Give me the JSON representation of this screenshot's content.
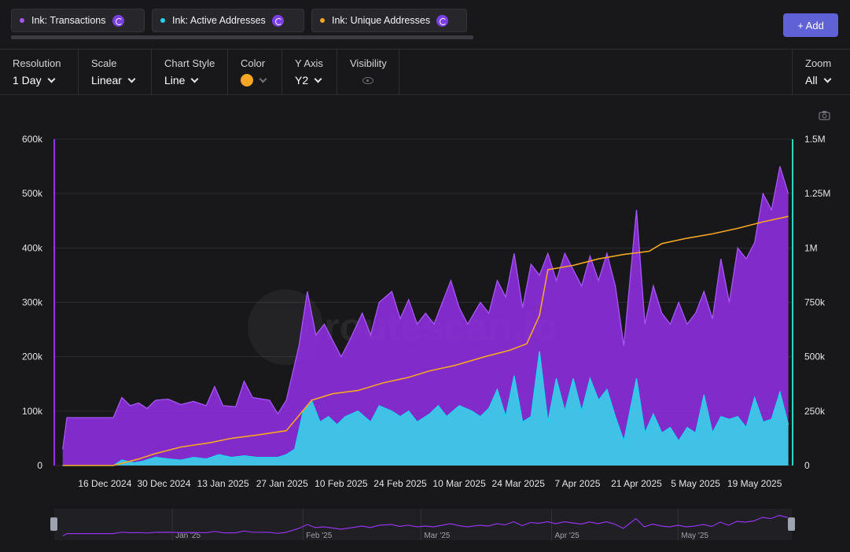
{
  "series_chips": [
    {
      "label": "Ink: Transactions",
      "color": "#a855f7"
    },
    {
      "label": "Ink: Active Addresses",
      "color": "#22d3ee"
    },
    {
      "label": "Ink: Unique Addresses",
      "color": "#f5a623"
    }
  ],
  "add_button": "+ Add",
  "controls": {
    "resolution": {
      "label": "Resolution",
      "value": "1 Day"
    },
    "scale": {
      "label": "Scale",
      "value": "Linear"
    },
    "chart_style": {
      "label": "Chart Style",
      "value": "Line"
    },
    "color": {
      "label": "Color",
      "value": "#f5a623"
    },
    "y_axis": {
      "label": "Y Axis",
      "value": "Y2"
    },
    "visibility": {
      "label": "Visibility"
    },
    "zoom": {
      "label": "Zoom",
      "value": "All"
    }
  },
  "icons": {
    "screenshot": "camera-icon",
    "visibility": "eye-icon",
    "series": "ink-logo-icon"
  },
  "watermark": "routescan.io",
  "chart_data": {
    "type": "area",
    "grid": true,
    "x_ticks": [
      "16 Dec 2024",
      "30 Dec 2024",
      "13 Jan 2025",
      "27 Jan 2025",
      "10 Feb 2025",
      "24 Feb 2025",
      "10 Mar 2025",
      "24 Mar 2025",
      "7 Apr 2025",
      "21 Apr 2025",
      "5 May 2025",
      "19 May 2025"
    ],
    "x_range": [
      "2024-12-04",
      "2025-05-28"
    ],
    "y_left": {
      "ticks": [
        "0",
        "100k",
        "200k",
        "300k",
        "400k",
        "500k",
        "600k"
      ],
      "range": [
        0,
        600000
      ]
    },
    "y_right": {
      "ticks": [
        "0",
        "250k",
        "500k",
        "750k",
        "1M",
        "1.25M",
        "1.5M"
      ],
      "range": [
        0,
        1500000
      ]
    },
    "navigator_ticks": [
      "Jan '25",
      "Feb '25",
      "Mar '25",
      "Apr '25",
      "May '25"
    ],
    "series": [
      {
        "name": "Ink: Transactions",
        "axis": "left",
        "color": "#8b2fd9",
        "line": "#a855f7",
        "points": [
          [
            "2024-12-06",
            30000
          ],
          [
            "2024-12-07",
            88000
          ],
          [
            "2024-12-16",
            88000
          ],
          [
            "2024-12-18",
            88000
          ],
          [
            "2024-12-20",
            125000
          ],
          [
            "2024-12-22",
            110000
          ],
          [
            "2024-12-24",
            115000
          ],
          [
            "2024-12-26",
            105000
          ],
          [
            "2024-12-28",
            120000
          ],
          [
            "2024-12-31",
            122000
          ],
          [
            "2025-01-03",
            112000
          ],
          [
            "2025-01-06",
            118000
          ],
          [
            "2025-01-09",
            110000
          ],
          [
            "2025-01-11",
            145000
          ],
          [
            "2025-01-13",
            110000
          ],
          [
            "2025-01-16",
            108000
          ],
          [
            "2025-01-18",
            155000
          ],
          [
            "2025-01-20",
            125000
          ],
          [
            "2025-01-24",
            120000
          ],
          [
            "2025-01-26",
            95000
          ],
          [
            "2025-01-28",
            120000
          ],
          [
            "2025-01-31",
            220000
          ],
          [
            "2025-02-02",
            320000
          ],
          [
            "2025-02-04",
            240000
          ],
          [
            "2025-02-06",
            260000
          ],
          [
            "2025-02-08",
            230000
          ],
          [
            "2025-02-10",
            200000
          ],
          [
            "2025-02-12",
            230000
          ],
          [
            "2025-02-15",
            280000
          ],
          [
            "2025-02-17",
            240000
          ],
          [
            "2025-02-19",
            300000
          ],
          [
            "2025-02-22",
            320000
          ],
          [
            "2025-02-24",
            270000
          ],
          [
            "2025-02-26",
            305000
          ],
          [
            "2025-02-28",
            260000
          ],
          [
            "2025-03-02",
            280000
          ],
          [
            "2025-03-04",
            260000
          ],
          [
            "2025-03-06",
            300000
          ],
          [
            "2025-03-08",
            340000
          ],
          [
            "2025-03-10",
            290000
          ],
          [
            "2025-03-12",
            260000
          ],
          [
            "2025-03-15",
            300000
          ],
          [
            "2025-03-17",
            280000
          ],
          [
            "2025-03-19",
            340000
          ],
          [
            "2025-03-21",
            310000
          ],
          [
            "2025-03-23",
            390000
          ],
          [
            "2025-03-25",
            290000
          ],
          [
            "2025-03-27",
            370000
          ],
          [
            "2025-03-29",
            350000
          ],
          [
            "2025-03-31",
            390000
          ],
          [
            "2025-04-02",
            340000
          ],
          [
            "2025-04-04",
            390000
          ],
          [
            "2025-04-06",
            360000
          ],
          [
            "2025-04-08",
            330000
          ],
          [
            "2025-04-10",
            385000
          ],
          [
            "2025-04-12",
            340000
          ],
          [
            "2025-04-14",
            390000
          ],
          [
            "2025-04-16",
            330000
          ],
          [
            "2025-04-18",
            220000
          ],
          [
            "2025-04-21",
            470000
          ],
          [
            "2025-04-23",
            260000
          ],
          [
            "2025-04-25",
            330000
          ],
          [
            "2025-04-27",
            280000
          ],
          [
            "2025-04-29",
            260000
          ],
          [
            "2025-05-01",
            300000
          ],
          [
            "2025-05-03",
            260000
          ],
          [
            "2025-05-05",
            280000
          ],
          [
            "2025-05-07",
            320000
          ],
          [
            "2025-05-09",
            270000
          ],
          [
            "2025-05-11",
            380000
          ],
          [
            "2025-05-13",
            300000
          ],
          [
            "2025-05-15",
            400000
          ],
          [
            "2025-05-17",
            380000
          ],
          [
            "2025-05-19",
            410000
          ],
          [
            "2025-05-21",
            500000
          ],
          [
            "2025-05-23",
            470000
          ],
          [
            "2025-05-25",
            550000
          ],
          [
            "2025-05-27",
            500000
          ]
        ]
      },
      {
        "name": "Ink: Active Addresses",
        "axis": "left",
        "color": "#3cc9e6",
        "line": "#22d3ee",
        "points": [
          [
            "2024-12-06",
            0
          ],
          [
            "2024-12-18",
            0
          ],
          [
            "2024-12-20",
            10000
          ],
          [
            "2024-12-23",
            5000
          ],
          [
            "2024-12-25",
            8000
          ],
          [
            "2024-12-28",
            15000
          ],
          [
            "2024-12-31",
            12000
          ],
          [
            "2025-01-03",
            10000
          ],
          [
            "2025-01-06",
            15000
          ],
          [
            "2025-01-09",
            12000
          ],
          [
            "2025-01-12",
            20000
          ],
          [
            "2025-01-15",
            15000
          ],
          [
            "2025-01-18",
            18000
          ],
          [
            "2025-01-21",
            15000
          ],
          [
            "2025-01-26",
            15000
          ],
          [
            "2025-01-28",
            20000
          ],
          [
            "2025-01-30",
            30000
          ],
          [
            "2025-02-01",
            100000
          ],
          [
            "2025-02-03",
            120000
          ],
          [
            "2025-02-05",
            80000
          ],
          [
            "2025-02-07",
            90000
          ],
          [
            "2025-02-09",
            75000
          ],
          [
            "2025-02-11",
            90000
          ],
          [
            "2025-02-14",
            100000
          ],
          [
            "2025-02-17",
            80000
          ],
          [
            "2025-02-19",
            110000
          ],
          [
            "2025-02-22",
            100000
          ],
          [
            "2025-02-24",
            90000
          ],
          [
            "2025-02-26",
            100000
          ],
          [
            "2025-02-28",
            80000
          ],
          [
            "2025-03-03",
            95000
          ],
          [
            "2025-03-05",
            110000
          ],
          [
            "2025-03-07",
            90000
          ],
          [
            "2025-03-10",
            110000
          ],
          [
            "2025-03-13",
            100000
          ],
          [
            "2025-03-15",
            90000
          ],
          [
            "2025-03-17",
            105000
          ],
          [
            "2025-03-19",
            140000
          ],
          [
            "2025-03-21",
            90000
          ],
          [
            "2025-03-23",
            165000
          ],
          [
            "2025-03-25",
            80000
          ],
          [
            "2025-03-27",
            90000
          ],
          [
            "2025-03-29",
            210000
          ],
          [
            "2025-03-31",
            80000
          ],
          [
            "2025-04-02",
            160000
          ],
          [
            "2025-04-04",
            100000
          ],
          [
            "2025-04-06",
            160000
          ],
          [
            "2025-04-08",
            100000
          ],
          [
            "2025-04-10",
            160000
          ],
          [
            "2025-04-12",
            120000
          ],
          [
            "2025-04-14",
            140000
          ],
          [
            "2025-04-16",
            90000
          ],
          [
            "2025-04-18",
            45000
          ],
          [
            "2025-04-21",
            160000
          ],
          [
            "2025-04-23",
            60000
          ],
          [
            "2025-04-25",
            95000
          ],
          [
            "2025-04-27",
            60000
          ],
          [
            "2025-04-29",
            70000
          ],
          [
            "2025-05-01",
            45000
          ],
          [
            "2025-05-03",
            70000
          ],
          [
            "2025-05-05",
            60000
          ],
          [
            "2025-05-07",
            130000
          ],
          [
            "2025-05-09",
            60000
          ],
          [
            "2025-05-11",
            90000
          ],
          [
            "2025-05-13",
            85000
          ],
          [
            "2025-05-15",
            90000
          ],
          [
            "2025-05-17",
            70000
          ],
          [
            "2025-05-19",
            125000
          ],
          [
            "2025-05-21",
            80000
          ],
          [
            "2025-05-23",
            85000
          ],
          [
            "2025-05-25",
            135000
          ],
          [
            "2025-05-27",
            75000
          ]
        ]
      },
      {
        "name": "Ink: Unique Addresses",
        "axis": "right",
        "color": "#f5a623",
        "points": [
          [
            "2024-12-06",
            0
          ],
          [
            "2024-12-18",
            0
          ],
          [
            "2024-12-20",
            10000
          ],
          [
            "2024-12-24",
            30000
          ],
          [
            "2024-12-28",
            55000
          ],
          [
            "2025-01-03",
            85000
          ],
          [
            "2025-01-10",
            105000
          ],
          [
            "2025-01-15",
            125000
          ],
          [
            "2025-01-21",
            140000
          ],
          [
            "2025-01-28",
            160000
          ],
          [
            "2025-01-31",
            230000
          ],
          [
            "2025-02-03",
            300000
          ],
          [
            "2025-02-08",
            330000
          ],
          [
            "2025-02-14",
            345000
          ],
          [
            "2025-02-20",
            380000
          ],
          [
            "2025-02-26",
            405000
          ],
          [
            "2025-03-03",
            435000
          ],
          [
            "2025-03-09",
            460000
          ],
          [
            "2025-03-16",
            500000
          ],
          [
            "2025-03-22",
            530000
          ],
          [
            "2025-03-26",
            560000
          ],
          [
            "2025-03-29",
            690000
          ],
          [
            "2025-03-31",
            900000
          ],
          [
            "2025-04-06",
            920000
          ],
          [
            "2025-04-12",
            950000
          ],
          [
            "2025-04-18",
            970000
          ],
          [
            "2025-04-24",
            985000
          ],
          [
            "2025-04-27",
            1020000
          ],
          [
            "2025-05-03",
            1045000
          ],
          [
            "2025-05-09",
            1065000
          ],
          [
            "2025-05-15",
            1090000
          ],
          [
            "2025-05-21",
            1120000
          ],
          [
            "2025-05-27",
            1145000
          ]
        ]
      }
    ]
  }
}
